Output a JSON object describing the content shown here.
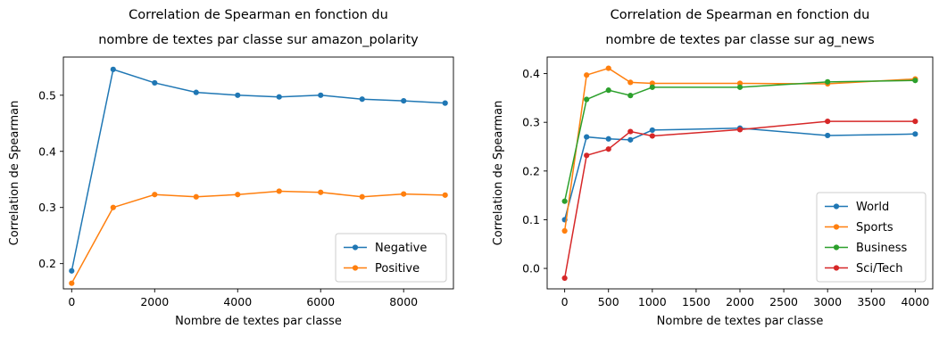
{
  "chart_data": [
    {
      "type": "line",
      "title": [
        "Correlation de Spearman en fonction du",
        "nombre de textes par classe sur amazon_polarity"
      ],
      "xlabel": "Nombre de textes par classe",
      "ylabel": "Correlation de Spearman",
      "x": [
        0,
        1000,
        2000,
        3000,
        4000,
        5000,
        6000,
        7000,
        8000,
        9000
      ],
      "xlim": [
        -200,
        9200
      ],
      "ylim": [
        0.155,
        0.568
      ],
      "xticks": [
        0,
        2000,
        4000,
        6000,
        8000
      ],
      "xtick_labels": [
        "0",
        "2000",
        "4000",
        "6000",
        "8000"
      ],
      "yticks": [
        0.2,
        0.3,
        0.4,
        0.5
      ],
      "ytick_labels": [
        "0.2",
        "0.3",
        "0.4",
        "0.5"
      ],
      "legend_position": "lower-right",
      "grid": false,
      "series": [
        {
          "name": "Negative",
          "color": "#1f77b4",
          "values": [
            0.187,
            0.546,
            0.522,
            0.505,
            0.5,
            0.497,
            0.5,
            0.493,
            0.49,
            0.486
          ]
        },
        {
          "name": "Positive",
          "color": "#ff7f0e",
          "values": [
            0.165,
            0.3,
            0.323,
            0.319,
            0.323,
            0.329,
            0.327,
            0.319,
            0.324,
            0.322
          ]
        }
      ]
    },
    {
      "type": "line",
      "title": [
        "Correlation de Spearman en fonction du",
        "nombre de textes par classe sur ag_news"
      ],
      "xlabel": "Nombre de textes par classe",
      "ylabel": "Correlation de Spearman",
      "x": [
        0,
        250,
        500,
        750,
        1000,
        2000,
        3000,
        4000
      ],
      "xlim": [
        -200,
        4200
      ],
      "ylim": [
        -0.042,
        0.434
      ],
      "xticks": [
        0,
        500,
        1000,
        1500,
        2000,
        2500,
        3000,
        3500,
        4000
      ],
      "xtick_labels": [
        "0",
        "500",
        "1000",
        "1500",
        "2000",
        "2500",
        "3000",
        "3500",
        "4000"
      ],
      "yticks": [
        0.0,
        0.1,
        0.2,
        0.3,
        0.4
      ],
      "ytick_labels": [
        "0.0",
        "0.1",
        "0.2",
        "0.3",
        "0.4"
      ],
      "legend_position": "lower-right",
      "grid": false,
      "series": [
        {
          "name": "World",
          "color": "#1f77b4",
          "values": [
            0.1,
            0.27,
            0.266,
            0.264,
            0.284,
            0.288,
            0.273,
            0.276
          ]
        },
        {
          "name": "Sports",
          "color": "#ff7f0e",
          "values": [
            0.077,
            0.397,
            0.411,
            0.382,
            0.38,
            0.38,
            0.379,
            0.389
          ]
        },
        {
          "name": "Business",
          "color": "#2ca02c",
          "values": [
            0.138,
            0.347,
            0.366,
            0.355,
            0.372,
            0.372,
            0.383,
            0.386
          ]
        },
        {
          "name": "Sci/Tech",
          "color": "#d62728",
          "values": [
            -0.02,
            0.232,
            0.245,
            0.281,
            0.272,
            0.285,
            0.302,
            0.302
          ]
        }
      ]
    }
  ]
}
